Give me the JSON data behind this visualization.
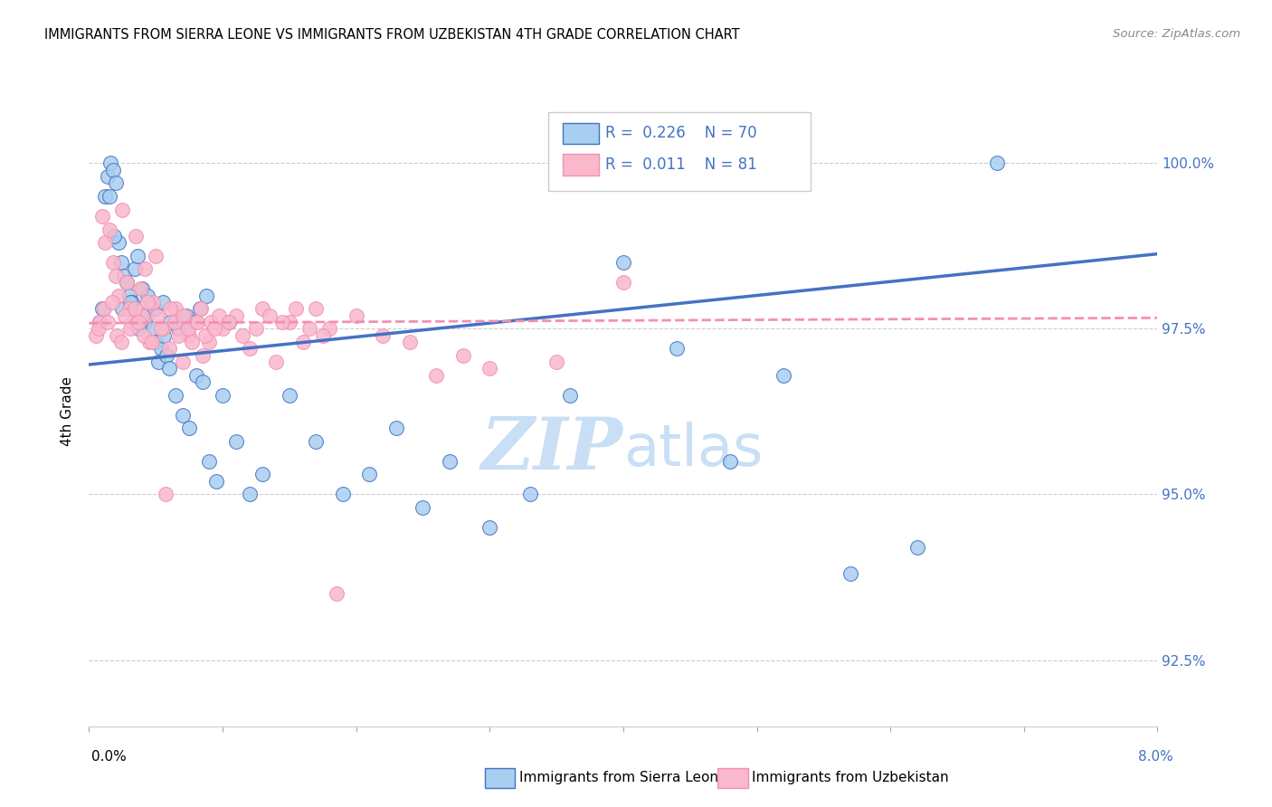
{
  "title": "IMMIGRANTS FROM SIERRA LEONE VS IMMIGRANTS FROM UZBEKISTAN 4TH GRADE CORRELATION CHART",
  "source": "Source: ZipAtlas.com",
  "ylabel": "4th Grade",
  "yticks": [
    92.5,
    95.0,
    97.5,
    100.0
  ],
  "ytick_labels": [
    "92.5%",
    "95.0%",
    "97.5%",
    "100.0%"
  ],
  "xlim": [
    0.0,
    8.0
  ],
  "ylim": [
    91.5,
    101.0
  ],
  "legend_label_blue": "Immigrants from Sierra Leone",
  "legend_label_pink": "Immigrants from Uzbekistan",
  "R_blue": 0.226,
  "N_blue": 70,
  "R_pink": 0.011,
  "N_pink": 81,
  "color_blue": "#A8CEF0",
  "color_pink": "#F9B8CC",
  "color_blue_line": "#4472C4",
  "color_pink_line": "#F48FB1",
  "color_text_blue": "#4472C4",
  "watermark_color": "#C8DFF5",
  "blue_x": [
    0.08,
    0.1,
    0.12,
    0.14,
    0.16,
    0.18,
    0.2,
    0.22,
    0.24,
    0.26,
    0.28,
    0.3,
    0.32,
    0.34,
    0.36,
    0.38,
    0.4,
    0.42,
    0.44,
    0.46,
    0.48,
    0.5,
    0.52,
    0.54,
    0.56,
    0.58,
    0.6,
    0.65,
    0.7,
    0.75,
    0.8,
    0.85,
    0.9,
    0.95,
    1.0,
    1.1,
    1.2,
    1.3,
    1.5,
    1.7,
    1.9,
    2.1,
    2.3,
    2.5,
    2.7,
    3.0,
    3.3,
    3.6,
    4.0,
    4.4,
    4.8,
    5.2,
    5.7,
    6.2,
    6.8,
    0.15,
    0.19,
    0.25,
    0.31,
    0.37,
    0.43,
    0.49,
    0.55,
    0.61,
    0.67,
    0.73,
    0.78,
    0.83,
    0.88,
    1.05
  ],
  "blue_y": [
    97.6,
    97.8,
    99.5,
    99.8,
    100.0,
    99.9,
    99.7,
    98.8,
    98.5,
    98.3,
    98.2,
    98.0,
    97.9,
    98.4,
    98.6,
    97.7,
    98.1,
    97.6,
    98.0,
    97.8,
    97.5,
    97.3,
    97.0,
    97.2,
    97.4,
    97.1,
    96.9,
    96.5,
    96.2,
    96.0,
    96.8,
    96.7,
    95.5,
    95.2,
    96.5,
    95.8,
    95.0,
    95.3,
    96.5,
    95.8,
    95.0,
    95.3,
    96.0,
    94.8,
    95.5,
    94.5,
    95.0,
    96.5,
    98.5,
    97.2,
    95.5,
    96.8,
    93.8,
    94.2,
    100.0,
    99.5,
    98.9,
    97.8,
    97.9,
    97.5,
    97.7,
    97.8,
    97.9,
    97.6,
    97.5,
    97.7,
    97.6,
    97.8,
    98.0,
    97.6
  ],
  "pink_x": [
    0.05,
    0.08,
    0.1,
    0.12,
    0.15,
    0.18,
    0.2,
    0.22,
    0.25,
    0.28,
    0.3,
    0.32,
    0.35,
    0.38,
    0.4,
    0.42,
    0.45,
    0.48,
    0.5,
    0.55,
    0.6,
    0.65,
    0.7,
    0.75,
    0.8,
    0.85,
    0.9,
    1.0,
    1.1,
    1.2,
    1.3,
    1.4,
    1.5,
    1.6,
    1.7,
    1.8,
    2.0,
    2.2,
    2.4,
    2.6,
    2.8,
    3.0,
    3.5,
    4.0,
    0.07,
    0.11,
    0.14,
    0.17,
    0.21,
    0.24,
    0.27,
    0.31,
    0.34,
    0.37,
    0.41,
    0.44,
    0.47,
    0.51,
    0.54,
    0.57,
    0.61,
    0.64,
    0.67,
    0.71,
    0.74,
    0.77,
    0.81,
    0.84,
    0.87,
    0.91,
    0.94,
    0.97,
    1.05,
    1.15,
    1.25,
    1.35,
    1.45,
    1.55,
    1.65,
    1.75,
    1.85
  ],
  "pink_y": [
    97.4,
    97.6,
    99.2,
    98.8,
    99.0,
    98.5,
    98.3,
    98.0,
    99.3,
    98.2,
    97.8,
    97.6,
    98.9,
    98.1,
    97.7,
    98.4,
    97.3,
    97.9,
    98.6,
    97.5,
    97.2,
    97.8,
    97.0,
    97.4,
    97.6,
    97.1,
    97.3,
    97.5,
    97.7,
    97.2,
    97.8,
    97.0,
    97.6,
    97.3,
    97.8,
    97.5,
    97.7,
    97.4,
    97.3,
    96.8,
    97.1,
    96.9,
    97.0,
    98.2,
    97.5,
    97.8,
    97.6,
    97.9,
    97.4,
    97.3,
    97.7,
    97.5,
    97.8,
    97.6,
    97.4,
    97.9,
    97.3,
    97.7,
    97.5,
    95.0,
    97.8,
    97.6,
    97.4,
    97.7,
    97.5,
    97.3,
    97.6,
    97.8,
    97.4,
    97.6,
    97.5,
    97.7,
    97.6,
    97.4,
    97.5,
    97.7,
    97.6,
    97.8,
    97.5,
    97.4,
    93.5
  ]
}
